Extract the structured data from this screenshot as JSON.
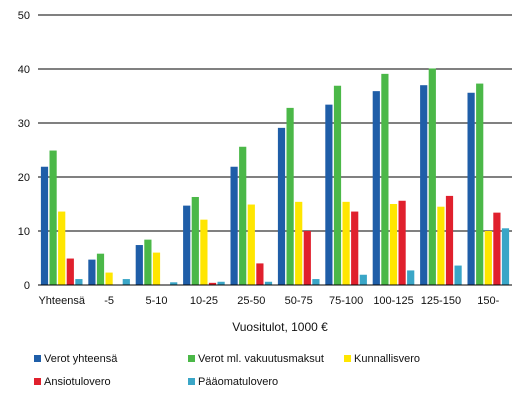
{
  "chart_data": {
    "type": "bar",
    "title": "",
    "xlabel": "Vuositulot, 1000 €",
    "ylabel": "",
    "ylim": [
      0,
      50
    ],
    "yticks": [
      0,
      10,
      20,
      30,
      40,
      50
    ],
    "grid": true,
    "legend_position": "bottom",
    "categories": [
      "Yhteensä",
      "-5",
      "5-10",
      "10-25",
      "25-50",
      "50-75",
      "75-100",
      "100-125",
      "125-150",
      "150-"
    ],
    "series": [
      {
        "name": "Verot yhteensä",
        "color": "#1f5ea8",
        "values": [
          21.9,
          4.7,
          7.4,
          14.7,
          21.9,
          29.1,
          33.4,
          35.9,
          37.0,
          35.6
        ]
      },
      {
        "name": "Verot ml. vakuutusmaksut",
        "color": "#4bb848",
        "values": [
          24.9,
          5.8,
          8.4,
          16.3,
          25.6,
          32.8,
          36.9,
          39.1,
          40.1,
          37.3
        ]
      },
      {
        "name": "Kunnallisvero",
        "color": "#ffe600",
        "values": [
          13.6,
          2.3,
          6.0,
          12.1,
          14.9,
          15.4,
          15.4,
          15.0,
          14.5,
          10.0
        ]
      },
      {
        "name": "Ansiotulovero",
        "color": "#e0202d",
        "values": [
          4.9,
          0.0,
          0.0,
          0.4,
          4.0,
          10.0,
          13.6,
          15.6,
          16.5,
          13.4
        ]
      },
      {
        "name": "Pääomatulovero",
        "color": "#3aa6c7",
        "values": [
          1.1,
          1.1,
          0.5,
          0.6,
          0.6,
          1.1,
          1.9,
          2.7,
          3.6,
          10.5
        ]
      }
    ]
  }
}
